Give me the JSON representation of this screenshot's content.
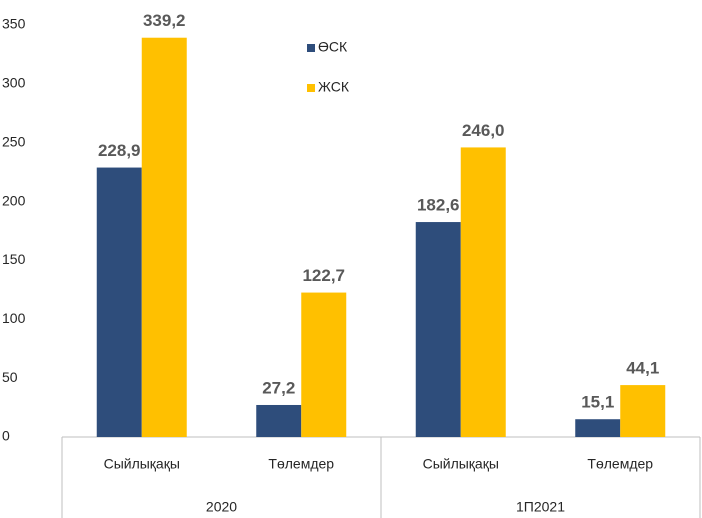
{
  "chart_data": {
    "type": "bar",
    "categories": [
      "Сыйлықақы",
      "Төлемдер",
      "Сыйлықақы",
      "Төлемдер"
    ],
    "groups": [
      "2020",
      "1П2021"
    ],
    "series": [
      {
        "name": "ӨСК",
        "color": "#2e4d7b",
        "values": [
          228.9,
          27.2,
          182.6,
          15.1
        ],
        "value_labels": [
          "228,9",
          "27,2",
          "182,6",
          "15,1"
        ]
      },
      {
        "name": "ЖСК",
        "color": "#ffc000",
        "values": [
          339.2,
          122.7,
          246.0,
          44.1
        ],
        "value_labels": [
          "339,2",
          "122,7",
          "246,0",
          "44,1"
        ]
      }
    ],
    "ylim": [
      0,
      350
    ],
    "yticks": [
      0,
      50,
      100,
      150,
      200,
      250,
      300,
      350
    ],
    "grid": false
  }
}
